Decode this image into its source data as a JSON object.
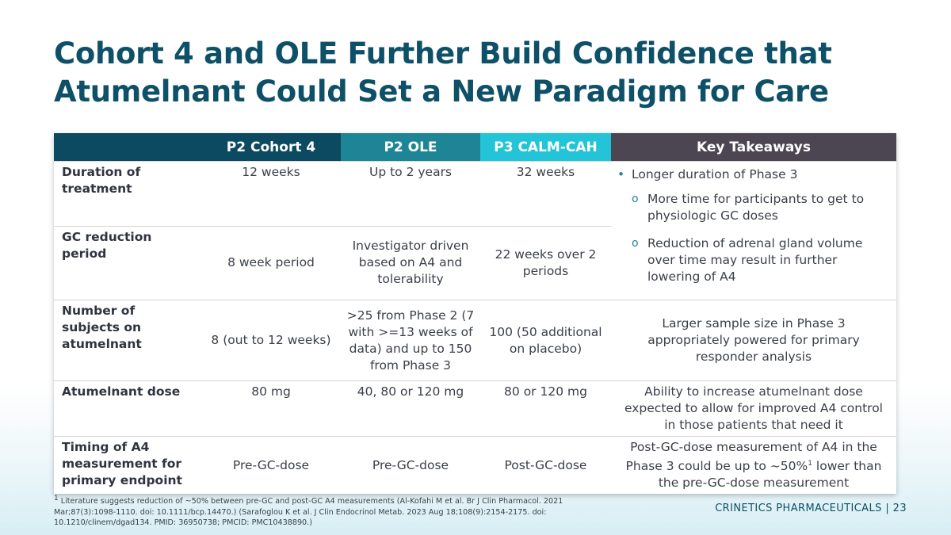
{
  "title_line1": "Cohort 4 and OLE Further Build Confidence that",
  "title_line2": "Atumelnant Could Set a New Paradigm for Care",
  "table": {
    "headers": [
      "",
      "P2 Cohort 4",
      "P2 OLE",
      "P3 CALM-CAH",
      "Key Takeaways"
    ],
    "rows": [
      {
        "label": "Duration of treatment",
        "c4": "12 weeks",
        "ole": "Up to 2 years",
        "p3": "32 weeks"
      },
      {
        "label": "GC reduction period",
        "c4": "8 week period",
        "ole": "Investigator driven based on A4 and tolerability",
        "p3": "22 weeks over 2 periods"
      },
      {
        "label": "Number of subjects on atumelnant",
        "c4": "8 (out to 12 weeks)",
        "ole": ">25 from Phase 2 (7 with >=13 weeks of data) and up to 150 from Phase 3",
        "p3": "100 (50 additional on placebo)",
        "takeaway": "Larger sample size in Phase 3 appropriately powered for primary responder analysis"
      },
      {
        "label": "Atumelnant dose",
        "c4": "80 mg",
        "ole": "40, 80 or 120 mg",
        "p3": "80 or 120 mg",
        "takeaway": "Ability to increase atumelnant dose expected to allow for improved A4 control in those patients that need it"
      },
      {
        "label": "Timing of A4 measurement for primary endpoint",
        "c4": "Pre-GC-dose",
        "ole": "Pre-GC-dose",
        "p3": "Post-GC-dose",
        "takeaway_a": "Post-GC-dose measurement of A4 in the Phase 3 could be up to ~50%",
        "takeaway_sup": "1",
        "takeaway_b": " lower than the pre-GC-dose measurement"
      }
    ],
    "merged_takeaway": {
      "bullet": "Longer duration of Phase 3",
      "sub1": "More time for participants to get to physiologic GC doses",
      "sub2": "Reduction of adrenal gland volume over time may result in further lowering of A4"
    }
  },
  "footnote_sup": "1",
  "footnote": " Literature suggests reduction of ~50% between pre-GC and post-GC A4 measurements (Al-Kofahi M et al. Br J Clin Pharmacol. 2021 Mar;87(3):1098-1110. doi: 10.1111/bcp.14470.) (Sarafoglou K et al. J Clin Endocrinol Metab. 2023 Aug 18;108(9):2154-2175. doi: 10.1210/clinem/dgad134. PMID: 36950738; PMCID: PMC10438890.)",
  "footer_company": "CRINETICS PHARMACEUTICALS",
  "footer_sep": "|",
  "page_number": "23"
}
